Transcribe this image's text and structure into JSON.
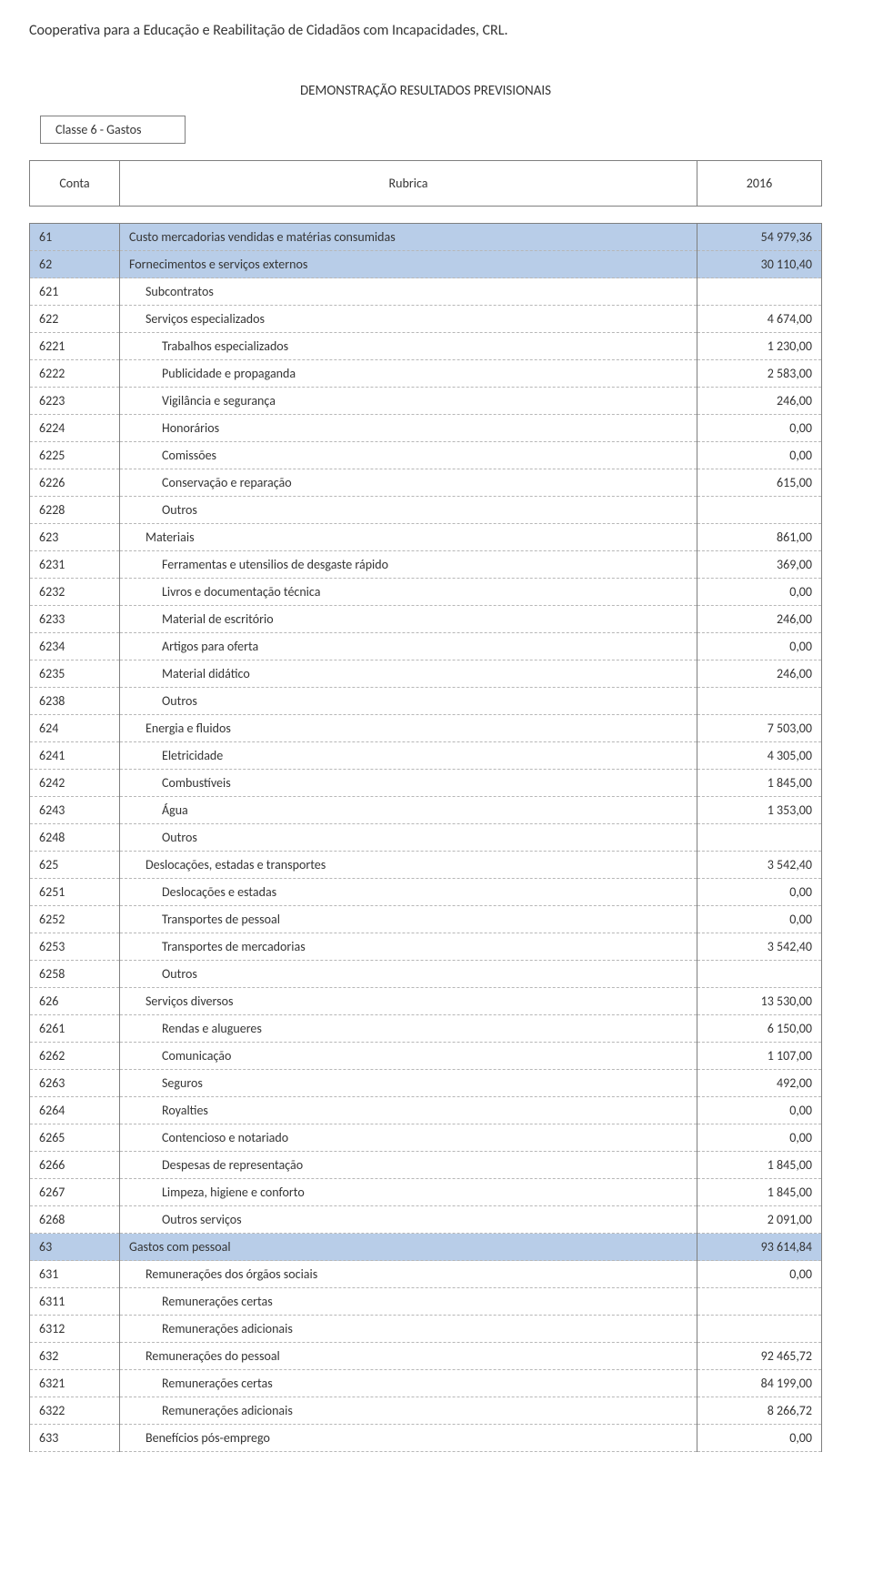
{
  "org_name": "Cooperativa para a Educação e Reabilitação de Cidadãos com Incapacidades, CRL.",
  "doc_title": "DEMONSTRAÇÃO RESULTADOS PREVISIONAIS",
  "classe_label": "Classe 6 - Gastos",
  "headers": {
    "conta": "Conta",
    "rubrica": "Rubrica",
    "year": "2016"
  },
  "rows": [
    {
      "code": "61",
      "label": "Custo mercadorias vendidas e matérias consumidas",
      "value": "54 979,36",
      "highlight": true,
      "indent": 0
    },
    {
      "code": "62",
      "label": "Fornecimentos e serviços externos",
      "value": "30 110,40",
      "highlight": true,
      "indent": 0
    },
    {
      "code": "621",
      "label": "Subcontratos",
      "value": "",
      "highlight": false,
      "indent": 1
    },
    {
      "code": "622",
      "label": "Serviços especializados",
      "value": "4 674,00",
      "highlight": false,
      "indent": 1
    },
    {
      "code": "6221",
      "label": "Trabalhos especializados",
      "value": "1 230,00",
      "highlight": false,
      "indent": 2
    },
    {
      "code": "6222",
      "label": "Publicidade e propaganda",
      "value": "2 583,00",
      "highlight": false,
      "indent": 2
    },
    {
      "code": "6223",
      "label": "Vigilância e segurança",
      "value": "246,00",
      "highlight": false,
      "indent": 2
    },
    {
      "code": "6224",
      "label": "Honorários",
      "value": "0,00",
      "highlight": false,
      "indent": 2
    },
    {
      "code": "6225",
      "label": "Comissões",
      "value": "0,00",
      "highlight": false,
      "indent": 2
    },
    {
      "code": "6226",
      "label": "Conservação e reparação",
      "value": "615,00",
      "highlight": false,
      "indent": 2
    },
    {
      "code": "6228",
      "label": "Outros",
      "value": "",
      "highlight": false,
      "indent": 2
    },
    {
      "code": "623",
      "label": "Materiais",
      "value": "861,00",
      "highlight": false,
      "indent": 1
    },
    {
      "code": "6231",
      "label": "Ferramentas e utensilios de desgaste rápido",
      "value": "369,00",
      "highlight": false,
      "indent": 2
    },
    {
      "code": "6232",
      "label": "Livros e documentação técnica",
      "value": "0,00",
      "highlight": false,
      "indent": 2
    },
    {
      "code": "6233",
      "label": "Material de escritório",
      "value": "246,00",
      "highlight": false,
      "indent": 2
    },
    {
      "code": "6234",
      "label": "Artigos para oferta",
      "value": "0,00",
      "highlight": false,
      "indent": 2
    },
    {
      "code": "6235",
      "label": "Material didático",
      "value": "246,00",
      "highlight": false,
      "indent": 2
    },
    {
      "code": "6238",
      "label": "Outros",
      "value": "",
      "highlight": false,
      "indent": 2
    },
    {
      "code": "624",
      "label": "Energia e fluidos",
      "value": "7 503,00",
      "highlight": false,
      "indent": 1
    },
    {
      "code": "6241",
      "label": "Eletricidade",
      "value": "4 305,00",
      "highlight": false,
      "indent": 2
    },
    {
      "code": "6242",
      "label": "Combustíveis",
      "value": "1 845,00",
      "highlight": false,
      "indent": 2
    },
    {
      "code": "6243",
      "label": "Água",
      "value": "1 353,00",
      "highlight": false,
      "indent": 2
    },
    {
      "code": "6248",
      "label": "Outros",
      "value": "",
      "highlight": false,
      "indent": 2
    },
    {
      "code": "625",
      "label": "Deslocações, estadas e transportes",
      "value": "3 542,40",
      "highlight": false,
      "indent": 1
    },
    {
      "code": "6251",
      "label": "Deslocações e estadas",
      "value": "0,00",
      "highlight": false,
      "indent": 2
    },
    {
      "code": "6252",
      "label": "Transportes de pessoal",
      "value": "0,00",
      "highlight": false,
      "indent": 2
    },
    {
      "code": "6253",
      "label": "Transportes de mercadorias",
      "value": "3 542,40",
      "highlight": false,
      "indent": 2
    },
    {
      "code": "6258",
      "label": "Outros",
      "value": "",
      "highlight": false,
      "indent": 2
    },
    {
      "code": "626",
      "label": "Serviços diversos",
      "value": "13 530,00",
      "highlight": false,
      "indent": 1
    },
    {
      "code": "6261",
      "label": "Rendas e alugueres",
      "value": "6 150,00",
      "highlight": false,
      "indent": 2
    },
    {
      "code": "6262",
      "label": "Comunicação",
      "value": "1 107,00",
      "highlight": false,
      "indent": 2
    },
    {
      "code": "6263",
      "label": "Seguros",
      "value": "492,00",
      "highlight": false,
      "indent": 2
    },
    {
      "code": "6264",
      "label": "Royalties",
      "value": "0,00",
      "highlight": false,
      "indent": 2
    },
    {
      "code": "6265",
      "label": "Contencioso e notariado",
      "value": "0,00",
      "highlight": false,
      "indent": 2
    },
    {
      "code": "6266",
      "label": "Despesas de representação",
      "value": "1 845,00",
      "highlight": false,
      "indent": 2
    },
    {
      "code": "6267",
      "label": "Limpeza, higiene e conforto",
      "value": "1 845,00",
      "highlight": false,
      "indent": 2
    },
    {
      "code": "6268",
      "label": "Outros serviços",
      "value": "2 091,00",
      "highlight": false,
      "indent": 2
    },
    {
      "code": "63",
      "label": "Gastos com pessoal",
      "value": "93 614,84",
      "highlight": true,
      "indent": 0
    },
    {
      "code": "631",
      "label": "Remunerações dos órgãos sociais",
      "value": "0,00",
      "highlight": false,
      "indent": 1
    },
    {
      "code": "6311",
      "label": "Remunerações certas",
      "value": "",
      "highlight": false,
      "indent": 2
    },
    {
      "code": "6312",
      "label": "Remunerações adicionais",
      "value": "",
      "highlight": false,
      "indent": 2
    },
    {
      "code": "632",
      "label": "Remunerações do pessoal",
      "value": "92 465,72",
      "highlight": false,
      "indent": 1
    },
    {
      "code": "6321",
      "label": "Remunerações certas",
      "value": "84 199,00",
      "highlight": false,
      "indent": 2
    },
    {
      "code": "6322",
      "label": "Remunerações adicionais",
      "value": "8 266,72",
      "highlight": false,
      "indent": 2
    },
    {
      "code": "633",
      "label": "Benefícios pós-emprego",
      "value": "0,00",
      "highlight": false,
      "indent": 1
    }
  ],
  "style": {
    "highlight_bg": "#b8cde8",
    "border_color": "#7f7f7f",
    "dash_color": "#b7b7b7",
    "text_color": "#343434",
    "font_family": "Calibri, Arial, sans-serif",
    "base_fontsize_pt": 11
  }
}
